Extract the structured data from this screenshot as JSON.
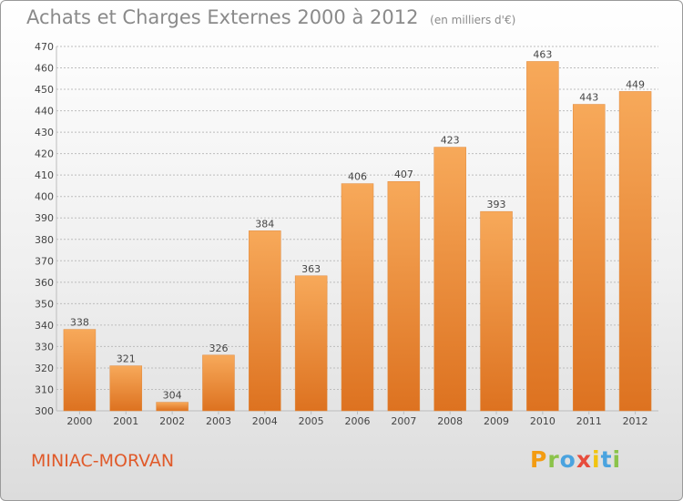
{
  "header": {
    "title": "Achats et Charges Externes 2000 à 2012",
    "unit": "(en milliers d'€)"
  },
  "footer": {
    "commune": "MINIAC-MORVAN",
    "logo_text": "Proxiti",
    "logo_colors": [
      "#f39c12",
      "#8bc34a",
      "#4aa3df",
      "#e74c3c",
      "#f1c40f",
      "#4aa3df",
      "#8bc34a"
    ]
  },
  "colors": {
    "bar_light": "#f7a95a",
    "bar_dark": "#dd7220",
    "grid": "#bdbdbd",
    "text": "#444444"
  },
  "chart_data": {
    "type": "bar",
    "title": "Achats et Charges Externes 2000 à 2012",
    "subtitle": "(en milliers d'€)",
    "categories": [
      "2000",
      "2001",
      "2002",
      "2003",
      "2004",
      "2005",
      "2006",
      "2007",
      "2008",
      "2009",
      "2010",
      "2011",
      "2012"
    ],
    "values": [
      338,
      321,
      304,
      326,
      384,
      363,
      406,
      407,
      423,
      393,
      463,
      443,
      449
    ],
    "ylim": [
      300,
      470
    ],
    "yticks": [
      300,
      310,
      320,
      330,
      340,
      350,
      360,
      370,
      380,
      390,
      400,
      410,
      420,
      430,
      440,
      450,
      460,
      470
    ],
    "grid": true,
    "xlabel": "",
    "ylabel": ""
  }
}
